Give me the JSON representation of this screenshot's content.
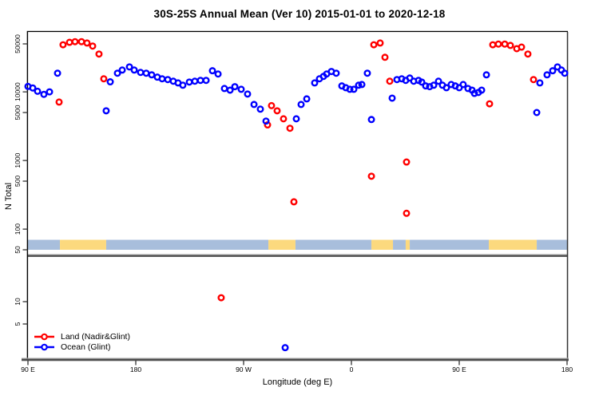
{
  "title": "30S-25S Annual Mean (Ver 10)   2015-01-01 to 2020-12-18",
  "colors": {
    "land": "#ff0000",
    "ocean": "#0000ff",
    "strip_land": "#fcd97e",
    "strip_ocean": "#a8bedc",
    "axis_gray": "#4d4d4d",
    "axis_gray_light": "#b3b3b3",
    "frame": "#000000"
  },
  "chart_data": {
    "type": "scatter",
    "title": "30S-25S Annual Mean (Ver 10)   2015-01-01 to 2020-12-18",
    "xlabel": "Longitude (deg E)",
    "ylabel": "N Total",
    "y_scale": "log10 with axis break below 50",
    "grid": "off",
    "x_axis": {
      "label": "Longitude (deg E)",
      "range_deg_east_continuous": [
        90,
        540
      ],
      "ticks": [
        {
          "lon": 90,
          "label": "90 E"
        },
        {
          "lon": 180,
          "label": "180"
        },
        {
          "lon": 270,
          "label": "90 W"
        },
        {
          "lon": 360,
          "label": "0"
        },
        {
          "lon": 450,
          "label": "90 E"
        },
        {
          "lon": 540,
          "label": "180"
        }
      ]
    },
    "y_axis": {
      "label": "N Total",
      "ticks": [
        50000,
        10000,
        5000,
        1000,
        500,
        100,
        50,
        10,
        5
      ],
      "upper_panel_range": [
        50,
        75000
      ],
      "lower_panel_range": [
        2,
        50
      ]
    },
    "legend": {
      "position": "bottom-left",
      "items": [
        {
          "name": "Land (Nadir&Glint)",
          "color": "#ff0000"
        },
        {
          "name": "Ocean (Glint)",
          "color": "#0000ff"
        }
      ]
    },
    "land_ocean_strip": {
      "description": "horizontal band just above the 50 line showing land (yellow) vs ocean (blue) along longitude",
      "segments": [
        {
          "type": "ocean",
          "from": 90,
          "to": 116.7
        },
        {
          "type": "land",
          "from": 116.7,
          "to": 155.3
        },
        {
          "type": "ocean",
          "from": 155.3,
          "to": 290.7
        },
        {
          "type": "land",
          "from": 290.7,
          "to": 313.3
        },
        {
          "type": "ocean",
          "from": 313.3,
          "to": 376.7
        },
        {
          "type": "land",
          "from": 376.7,
          "to": 394.7
        },
        {
          "type": "ocean",
          "from": 394.7,
          "to": 405.3
        },
        {
          "type": "land",
          "from": 405.3,
          "to": 408.7
        },
        {
          "type": "ocean",
          "from": 408.7,
          "to": 474.7
        },
        {
          "type": "land",
          "from": 474.7,
          "to": 514.7
        },
        {
          "type": "ocean",
          "from": 514.7,
          "to": 540
        }
      ]
    },
    "series": [
      {
        "name": "Land (Nadir&Glint)",
        "color": "#ff0000",
        "marker": "open-circle",
        "points": [
          [
            116.0,
            7100
          ],
          [
            119.3,
            48600
          ],
          [
            124.7,
            52700
          ],
          [
            129.3,
            53900
          ],
          [
            134.7,
            53900
          ],
          [
            139.3,
            51500
          ],
          [
            144.0,
            46500
          ],
          [
            149.3,
            35600
          ],
          [
            153.3,
            15500
          ],
          [
            251.3,
            11.3
          ],
          [
            290.0,
            3300
          ],
          [
            293.3,
            6300
          ],
          [
            298.0,
            5300
          ],
          [
            303.3,
            4050
          ],
          [
            308.7,
            2950
          ],
          [
            312.0,
            250
          ],
          [
            376.7,
            590
          ],
          [
            378.7,
            48600
          ],
          [
            384.0,
            51500
          ],
          [
            388.0,
            31900
          ],
          [
            392.0,
            14300
          ],
          [
            406.0,
            950
          ],
          [
            406.0,
            170
          ],
          [
            475.3,
            6700
          ],
          [
            478.0,
            48600
          ],
          [
            482.7,
            49700
          ],
          [
            488.0,
            49700
          ],
          [
            492.7,
            47500
          ],
          [
            498.0,
            42600
          ],
          [
            502.0,
            44900
          ],
          [
            507.3,
            35600
          ],
          [
            512.0,
            15100
          ]
        ]
      },
      {
        "name": "Ocean (Glint)",
        "color": "#0000ff",
        "marker": "open-circle",
        "points": [
          [
            90.0,
            12000
          ],
          [
            94.0,
            11400
          ],
          [
            98.0,
            10200
          ],
          [
            103.3,
            9200
          ],
          [
            108.0,
            10000
          ],
          [
            114.7,
            18700
          ],
          [
            155.3,
            5300
          ],
          [
            158.7,
            14000
          ],
          [
            164.7,
            18700
          ],
          [
            168.7,
            20800
          ],
          [
            174.7,
            23100
          ],
          [
            178.7,
            20800
          ],
          [
            184.0,
            19200
          ],
          [
            188.7,
            18700
          ],
          [
            193.3,
            17700
          ],
          [
            198.0,
            16400
          ],
          [
            202.0,
            15500
          ],
          [
            206.7,
            15100
          ],
          [
            211.3,
            14300
          ],
          [
            215.3,
            13500
          ],
          [
            219.3,
            12500
          ],
          [
            224.7,
            13900
          ],
          [
            229.3,
            14300
          ],
          [
            234.0,
            14700
          ],
          [
            238.7,
            14700
          ],
          [
            244.0,
            20300
          ],
          [
            248.7,
            18200
          ],
          [
            254.0,
            11200
          ],
          [
            258.7,
            10600
          ],
          [
            262.7,
            11900
          ],
          [
            268.0,
            10900
          ],
          [
            273.3,
            9300
          ],
          [
            278.7,
            6550
          ],
          [
            284.0,
            5600
          ],
          [
            288.7,
            3750
          ],
          [
            304.7,
            2.4
          ],
          [
            314.0,
            4050
          ],
          [
            318.0,
            6550
          ],
          [
            322.7,
            7900
          ],
          [
            329.3,
            13500
          ],
          [
            333.3,
            15500
          ],
          [
            336.7,
            16800
          ],
          [
            339.3,
            18200
          ],
          [
            343.3,
            19800
          ],
          [
            347.3,
            18700
          ],
          [
            352.0,
            12200
          ],
          [
            355.3,
            11500
          ],
          [
            358.7,
            10900
          ],
          [
            362.0,
            10900
          ],
          [
            366.0,
            12500
          ],
          [
            368.7,
            12800
          ],
          [
            373.3,
            18700
          ],
          [
            376.7,
            3950
          ],
          [
            394.0,
            8100
          ],
          [
            398.0,
            15100
          ],
          [
            402.0,
            15500
          ],
          [
            405.3,
            14700
          ],
          [
            408.7,
            15900
          ],
          [
            412.0,
            14300
          ],
          [
            416.0,
            14700
          ],
          [
            418.7,
            13900
          ],
          [
            422.0,
            12200
          ],
          [
            425.3,
            11900
          ],
          [
            428.7,
            12500
          ],
          [
            432.7,
            14300
          ],
          [
            436.0,
            12500
          ],
          [
            439.3,
            11500
          ],
          [
            443.3,
            12800
          ],
          [
            446.7,
            12200
          ],
          [
            450.0,
            11500
          ],
          [
            453.3,
            12800
          ],
          [
            457.3,
            11200
          ],
          [
            460.7,
            10600
          ],
          [
            462.7,
            9500
          ],
          [
            466.0,
            9800
          ],
          [
            468.7,
            10600
          ],
          [
            472.7,
            17700
          ],
          [
            514.7,
            5000
          ],
          [
            517.3,
            13500
          ],
          [
            523.3,
            17700
          ],
          [
            528.0,
            20300
          ],
          [
            532.0,
            23100
          ],
          [
            535.3,
            20800
          ],
          [
            538.0,
            18700
          ]
        ]
      }
    ]
  }
}
